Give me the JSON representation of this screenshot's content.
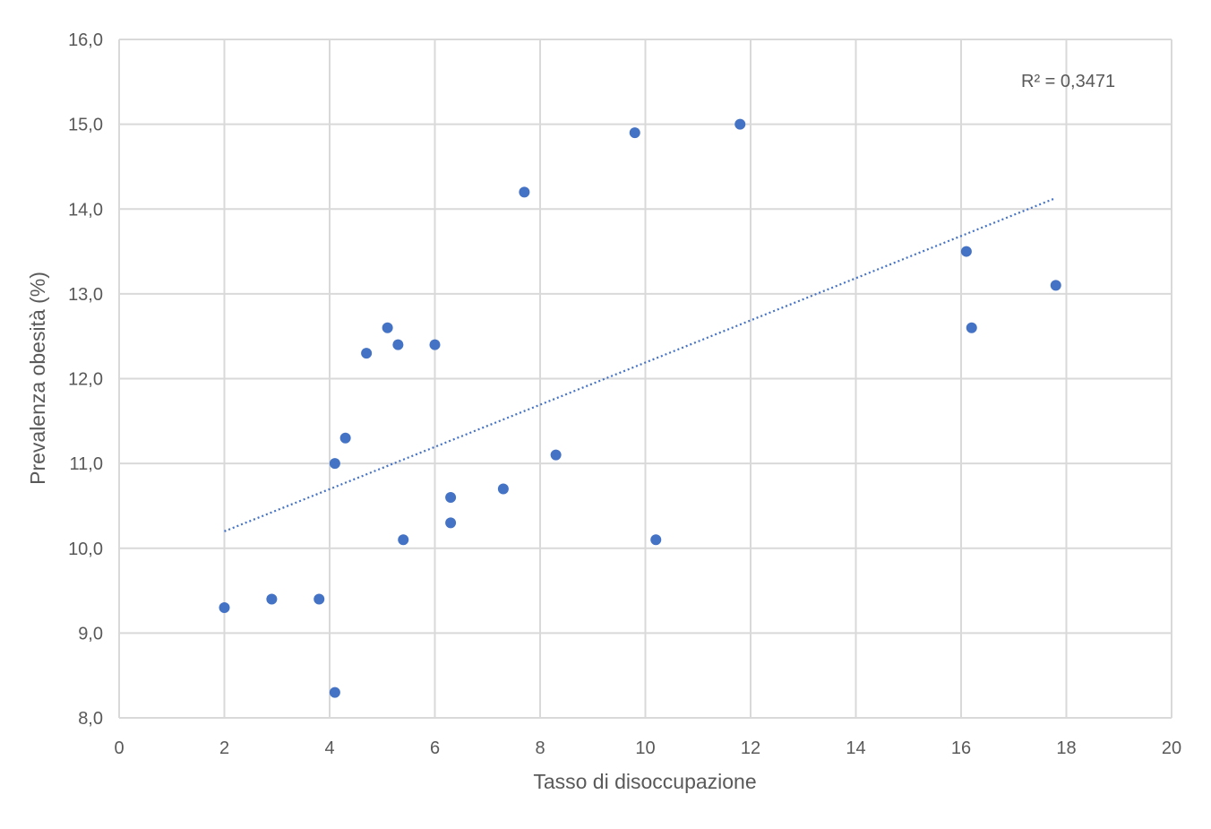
{
  "chart_data": {
    "type": "scatter",
    "title": "",
    "xlabel": "Tasso di disoccupazione",
    "ylabel": "Prevalenza obesità (%)",
    "xlim": [
      0,
      20
    ],
    "ylim": [
      8,
      16
    ],
    "x_ticks": [
      0,
      2,
      4,
      6,
      8,
      10,
      12,
      14,
      16,
      18,
      20
    ],
    "y_ticks": [
      8,
      9,
      10,
      11,
      12,
      13,
      14,
      15,
      16
    ],
    "x_tick_labels": [
      "0",
      "2",
      "4",
      "6",
      "8",
      "10",
      "12",
      "14",
      "16",
      "18",
      "20"
    ],
    "y_tick_labels": [
      "8,0",
      "9,0",
      "10,0",
      "11,0",
      "12,0",
      "13,0",
      "14,0",
      "15,0",
      "16,0"
    ],
    "grid": true,
    "legend": "none",
    "series": [
      {
        "color": "#4472c4",
        "points": [
          {
            "x": 2.0,
            "y": 9.3
          },
          {
            "x": 2.9,
            "y": 9.4
          },
          {
            "x": 3.8,
            "y": 9.4
          },
          {
            "x": 4.1,
            "y": 8.3
          },
          {
            "x": 4.1,
            "y": 11.0
          },
          {
            "x": 4.3,
            "y": 11.3
          },
          {
            "x": 4.7,
            "y": 12.3
          },
          {
            "x": 5.1,
            "y": 12.6
          },
          {
            "x": 5.3,
            "y": 12.4
          },
          {
            "x": 5.4,
            "y": 10.1
          },
          {
            "x": 6.0,
            "y": 12.4
          },
          {
            "x": 6.3,
            "y": 10.6
          },
          {
            "x": 6.3,
            "y": 10.3
          },
          {
            "x": 7.3,
            "y": 10.7
          },
          {
            "x": 7.7,
            "y": 14.2
          },
          {
            "x": 8.3,
            "y": 11.1
          },
          {
            "x": 9.8,
            "y": 14.9
          },
          {
            "x": 10.2,
            "y": 10.1
          },
          {
            "x": 11.8,
            "y": 15.0
          },
          {
            "x": 16.1,
            "y": 13.5
          },
          {
            "x": 16.2,
            "y": 12.6
          },
          {
            "x": 17.8,
            "y": 13.1
          }
        ]
      }
    ],
    "trendline": {
      "type": "linear",
      "style": "dotted",
      "x_start": 2.0,
      "y_start": 10.2,
      "x_end": 17.8,
      "y_end": 14.13,
      "r2_label": "R² = 0,3471"
    }
  }
}
